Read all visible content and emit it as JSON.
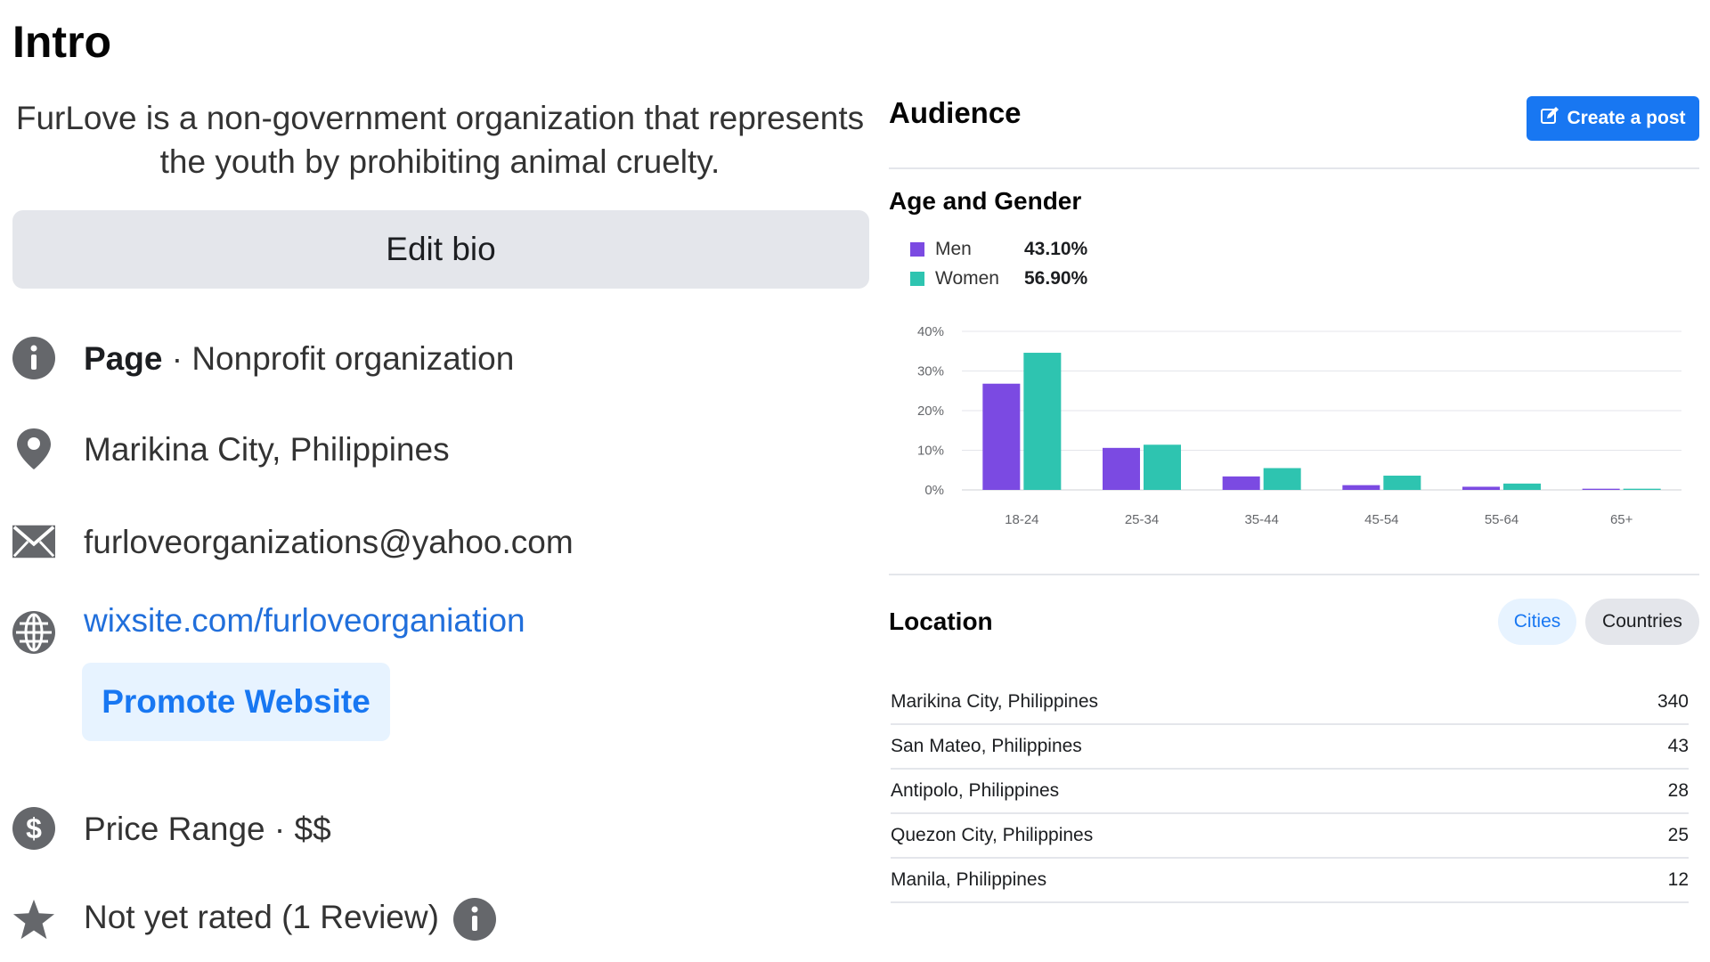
{
  "intro": {
    "title": "Intro",
    "bio": "FurLove is a non-government organization that represents the youth by prohibiting animal cruelty.",
    "edit_bio_label": "Edit bio",
    "page_label": "Page",
    "page_category": " · Nonprofit organization",
    "location": "Marikina City, Philippines",
    "email": "furloveorganizations@yahoo.com",
    "website": "wixsite.com/furloveorganiation",
    "promote_label": "Promote Website",
    "price_range": "Price Range · $$",
    "rating": "Not yet rated (1 Review)"
  },
  "icons": [
    "info-icon",
    "location-pin-icon",
    "envelope-icon",
    "globe-icon",
    "dollar-icon",
    "star-icon",
    "pencil-square-icon"
  ],
  "colors": {
    "men": "#7b4ae2",
    "women": "#2ec4b0",
    "accent": "#1877f2",
    "link": "#216fdb"
  },
  "audience": {
    "title": "Audience",
    "create_post_label": "Create a post",
    "age_gender_title": "Age and Gender",
    "legend": [
      {
        "label": "Men",
        "value": "43.10%"
      },
      {
        "label": "Women",
        "value": "56.90%"
      }
    ],
    "location_title": "Location",
    "tabs": {
      "cities": "Cities",
      "countries": "Countries"
    },
    "locations": [
      {
        "name": "Marikina City, Philippines",
        "count": "340"
      },
      {
        "name": "San Mateo, Philippines",
        "count": "43"
      },
      {
        "name": "Antipolo, Philippines",
        "count": "28"
      },
      {
        "name": "Quezon City, Philippines",
        "count": "25"
      },
      {
        "name": "Manila, Philippines",
        "count": "12"
      }
    ]
  },
  "chart_data": {
    "type": "bar",
    "title": "Age and Gender",
    "categories": [
      "18-24",
      "25-34",
      "35-44",
      "45-54",
      "55-64",
      "65+"
    ],
    "series": [
      {
        "name": "Men",
        "values": [
          26.8,
          10.6,
          3.4,
          1.2,
          0.8,
          0.3
        ]
      },
      {
        "name": "Women",
        "values": [
          34.6,
          11.4,
          5.5,
          3.6,
          1.6,
          0.3
        ]
      }
    ],
    "yticks": [
      "0%",
      "10%",
      "20%",
      "30%",
      "40%"
    ],
    "ylim": [
      0,
      40
    ],
    "grid": true,
    "legend": "top-left"
  }
}
